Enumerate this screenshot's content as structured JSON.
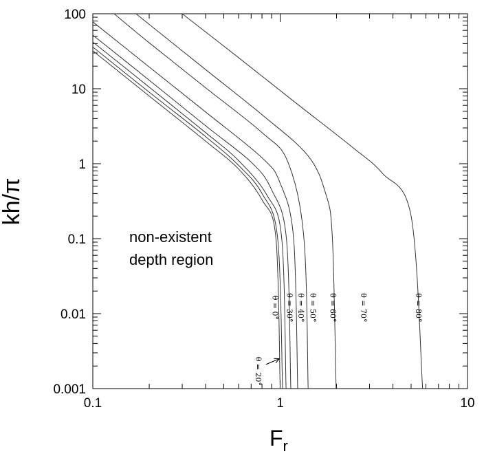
{
  "chart_data": {
    "type": "line",
    "title": "",
    "xlabel": "F",
    "xlabel_sub": "r",
    "ylabel": "kh/π",
    "x_scale": "log",
    "y_scale": "log",
    "xlim": [
      0.1,
      10
    ],
    "ylim": [
      0.001,
      100
    ],
    "x_ticks": [
      0.1,
      1,
      10
    ],
    "x_tick_labels": [
      "0.1",
      "1",
      "10"
    ],
    "y_ticks": [
      0.001,
      0.01,
      0.1,
      1,
      10,
      100
    ],
    "y_tick_labels": [
      "0.001",
      "0.01",
      "0.1",
      "1",
      "10",
      "100"
    ],
    "grid": false,
    "annotation": [
      "non-existent",
      "depth region"
    ],
    "series": [
      {
        "name": "θ = 0°",
        "asymptote_fr": 1.0,
        "points": [
          [
            0.1,
            32
          ],
          [
            0.2,
            8
          ],
          [
            0.4,
            2
          ],
          [
            0.6,
            0.85
          ],
          [
            0.8,
            0.33
          ],
          [
            0.95,
            0.1
          ],
          [
            1.0,
            0.001
          ]
        ]
      },
      {
        "name": "θ = 20°",
        "asymptote_fr": 1.03,
        "points": [
          [
            0.1,
            36
          ],
          [
            0.2,
            9
          ],
          [
            0.4,
            2.3
          ],
          [
            0.6,
            0.95
          ],
          [
            0.8,
            0.4
          ],
          [
            0.97,
            0.1
          ],
          [
            1.03,
            0.001
          ]
        ]
      },
      {
        "name": "θ = 30°",
        "asymptote_fr": 1.075,
        "points": [
          [
            0.1,
            42
          ],
          [
            0.2,
            10.5
          ],
          [
            0.4,
            2.6
          ],
          [
            0.6,
            1.1
          ],
          [
            0.85,
            0.38
          ],
          [
            1.02,
            0.1
          ],
          [
            1.075,
            0.001
          ]
        ]
      },
      {
        "name": "θ = 40°",
        "asymptote_fr": 1.14,
        "points": [
          [
            0.1,
            52
          ],
          [
            0.2,
            13
          ],
          [
            0.4,
            3.2
          ],
          [
            0.7,
            1.05
          ],
          [
            0.9,
            0.45
          ],
          [
            1.08,
            0.1
          ],
          [
            1.14,
            0.001
          ]
        ]
      },
      {
        "name": "θ = 50°",
        "asymptote_fr": 1.24,
        "points": [
          [
            0.1,
            78
          ],
          [
            0.2,
            19.5
          ],
          [
            0.4,
            4.9
          ],
          [
            0.8,
            1.2
          ],
          [
            1.0,
            0.55
          ],
          [
            1.18,
            0.1
          ],
          [
            1.24,
            0.001
          ]
        ]
      },
      {
        "name": "θ = 60°",
        "asymptote_fr": 1.41,
        "points": [
          [
            0.13,
            100
          ],
          [
            0.2,
            41
          ],
          [
            0.4,
            10.3
          ],
          [
            0.8,
            2.6
          ],
          [
            1.1,
            1.05
          ],
          [
            1.34,
            0.1
          ],
          [
            1.41,
            0.001
          ]
        ]
      },
      {
        "name": "θ = 70°",
        "asymptote_fr": 1.99,
        "points": [
          [
            0.17,
            100
          ],
          [
            0.4,
            18
          ],
          [
            0.8,
            4.5
          ],
          [
            1.4,
            1.3
          ],
          [
            1.75,
            0.4
          ],
          [
            1.9,
            0.1
          ],
          [
            1.99,
            0.001
          ]
        ]
      },
      {
        "name": "θ = 80°",
        "asymptote_fr": 5.76,
        "points": [
          [
            0.3,
            100
          ],
          [
            0.6,
            26
          ],
          [
            1.2,
            6.6
          ],
          [
            2.4,
            1.7
          ],
          [
            3.5,
            0.75
          ],
          [
            5.0,
            0.2
          ],
          [
            5.76,
            0.001
          ]
        ]
      }
    ],
    "curve_labels": [
      {
        "text": "θ = 0°",
        "x": 0.91,
        "y": 0.012
      },
      {
        "text": "θ = 30°",
        "x": 1.09,
        "y": 0.012
      },
      {
        "text": "θ = 40°",
        "x": 1.25,
        "y": 0.012
      },
      {
        "text": "θ = 50°",
        "x": 1.45,
        "y": 0.012
      },
      {
        "text": "θ = 60°",
        "x": 1.85,
        "y": 0.012
      },
      {
        "text": "θ = 70°",
        "x": 2.7,
        "y": 0.012
      },
      {
        "text": "θ = 80°",
        "x": 5.3,
        "y": 0.012
      },
      {
        "text": "θ = 20°",
        "x": 0.74,
        "y": 0.0017
      }
    ],
    "arrow": {
      "from": [
        0.84,
        0.0021
      ],
      "to": [
        0.99,
        0.0025
      ]
    }
  }
}
